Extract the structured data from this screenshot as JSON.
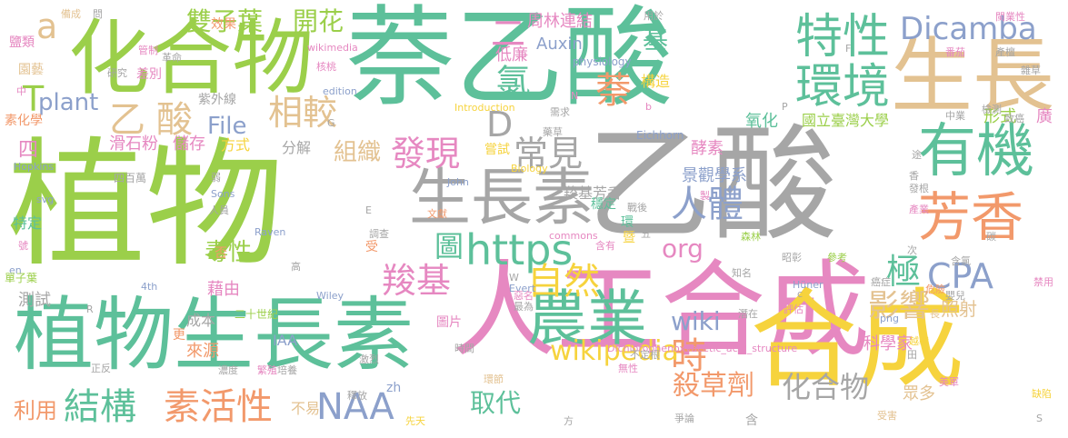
{
  "palette": {
    "green": "#9BCF4A",
    "teal": "#5DC09A",
    "gray": "#A6A6A6",
    "pink": "#E688C1",
    "yellow": "#F6D33D",
    "tan": "#E3C291",
    "orange": "#F2996B",
    "blue": "#8CA0CB"
  },
  "words": [
    {
      "text": "植物",
      "color": "green"
    },
    {
      "text": "乙酸",
      "color": "gray"
    },
    {
      "text": "萘乙酸",
      "color": "teal"
    },
    {
      "text": "人工合成",
      "color": "pink"
    },
    {
      "text": "合成",
      "color": "yellow"
    },
    {
      "text": "化合物",
      "color": "green"
    },
    {
      "text": "生長素",
      "color": "gray"
    },
    {
      "text": "植物生長素",
      "color": "teal"
    },
    {
      "text": "生長",
      "color": "tan"
    },
    {
      "text": "有機",
      "color": "teal"
    },
    {
      "text": "芳香",
      "color": "orange"
    },
    {
      "text": "農業",
      "color": "teal"
    },
    {
      "text": "特性",
      "color": "teal"
    },
    {
      "text": "環境",
      "color": "teal"
    },
    {
      "text": "Dicamba",
      "color": "blue"
    },
    {
      "text": "乙酸",
      "color": "tan"
    },
    {
      "text": "https",
      "color": "teal"
    },
    {
      "text": "結構",
      "color": "teal"
    },
    {
      "text": "素活性",
      "color": "orange"
    },
    {
      "text": "NAA",
      "color": "blue"
    },
    {
      "text": "自然",
      "color": "yellow"
    },
    {
      "text": "時",
      "color": "orange"
    },
    {
      "text": "人體",
      "color": "blue"
    },
    {
      "text": "常見",
      "color": "gray"
    },
    {
      "text": "發現",
      "color": "pink"
    },
    {
      "text": "羧基",
      "color": "pink"
    },
    {
      "text": "wikipedia",
      "color": "yellow"
    },
    {
      "text": "CPA",
      "color": "blue"
    },
    {
      "text": "極",
      "color": "teal"
    },
    {
      "text": "影響",
      "color": "tan"
    },
    {
      "text": "化合物",
      "color": "gray"
    },
    {
      "text": "殺草劑",
      "color": "orange"
    },
    {
      "text": "wiki",
      "color": "blue"
    },
    {
      "text": "org",
      "color": "pink"
    },
    {
      "text": "萘",
      "color": "orange"
    },
    {
      "text": "氯",
      "color": "teal"
    },
    {
      "text": "相較",
      "color": "tan"
    },
    {
      "text": "組織",
      "color": "tan"
    },
    {
      "text": "開花",
      "color": "green"
    },
    {
      "text": "雙子葉",
      "color": "green"
    },
    {
      "text": "毒性",
      "color": "green"
    },
    {
      "text": "File",
      "color": "blue"
    },
    {
      "text": "plant",
      "color": "blue"
    },
    {
      "text": "T",
      "color": "green"
    },
    {
      "text": "a",
      "color": "tan"
    },
    {
      "text": "D",
      "color": "gray"
    },
    {
      "text": "二",
      "color": "pink"
    },
    {
      "text": "基",
      "color": "teal"
    },
    {
      "text": "圖",
      "color": "teal"
    },
    {
      "text": "取代",
      "color": "teal"
    },
    {
      "text": "利用",
      "color": "orange"
    },
    {
      "text": "周林連結",
      "color": "pink"
    },
    {
      "text": "低廉",
      "color": "pink"
    },
    {
      "text": "氧化",
      "color": "teal"
    },
    {
      "text": "Auxin",
      "color": "blue"
    },
    {
      "text": "國立臺灣大學",
      "color": "green"
    },
    {
      "text": "景觀學系",
      "color": "blue"
    },
    {
      "text": "羧基芳香",
      "color": "gray"
    },
    {
      "text": "酵素",
      "color": "pink"
    },
    {
      "text": "科學家",
      "color": "pink"
    },
    {
      "text": "照射",
      "color": "tan"
    },
    {
      "text": "眾多",
      "color": "tan"
    },
    {
      "text": "形式",
      "color": "green"
    },
    {
      "text": "廣",
      "color": "pink"
    },
    {
      "text": "四",
      "color": "pink"
    },
    {
      "text": "滑石粉",
      "color": "pink"
    },
    {
      "text": "儲存",
      "color": "pink"
    },
    {
      "text": "方式",
      "color": "yellow"
    },
    {
      "text": "分解",
      "color": "gray"
    },
    {
      "text": "嘗試",
      "color": "yellow"
    },
    {
      "text": "穩定",
      "color": "teal"
    },
    {
      "text": "構造",
      "color": "yellow"
    },
    {
      "text": "成本",
      "color": "gray"
    },
    {
      "text": "來源",
      "color": "orange"
    },
    {
      "text": "藉由",
      "color": "pink"
    },
    {
      "text": "測試",
      "color": "gray"
    },
    {
      "text": "特定",
      "color": "teal"
    },
    {
      "text": "不易",
      "color": "tan"
    },
    {
      "text": "IAA",
      "color": "blue"
    },
    {
      "text": "二十世紀",
      "color": "green"
    },
    {
      "text": "圖片",
      "color": "pink"
    },
    {
      "text": "紫外線",
      "color": "gray"
    },
    {
      "text": "效果",
      "color": "orange"
    },
    {
      "text": "差別",
      "color": "pink"
    },
    {
      "text": "園藝",
      "color": "tan"
    },
    {
      "text": "鹽類",
      "color": "pink"
    },
    {
      "text": "素化學",
      "color": "orange"
    },
    {
      "text": "Hopkins",
      "color": "blue"
    },
    {
      "text": "physiology",
      "color": "blue"
    },
    {
      "text": "Introduction",
      "color": "yellow"
    },
    {
      "text": "Eichhorn",
      "color": "blue"
    },
    {
      "text": "Biology",
      "color": "yellow"
    },
    {
      "text": "John",
      "color": "blue"
    },
    {
      "text": "Sons",
      "color": "blue"
    },
    {
      "text": "Raven",
      "color": "blue"
    },
    {
      "text": "edition",
      "color": "blue"
    },
    {
      "text": "wikimedia",
      "color": "pink"
    },
    {
      "text": "commons",
      "color": "pink"
    },
    {
      "text": "Dichlorophenoxyacetic_acid_structure",
      "color": "pink"
    },
    {
      "text": "zh",
      "color": "blue"
    },
    {
      "text": "svg",
      "color": "blue"
    },
    {
      "text": "png",
      "color": "blue"
    },
    {
      "text": "4th",
      "color": "blue"
    },
    {
      "text": "Evert",
      "color": "blue"
    },
    {
      "text": "Wiley",
      "color": "blue"
    },
    {
      "text": "Hüner",
      "color": "blue"
    },
    {
      "text": "en",
      "color": "blue"
    },
    {
      "text": "單子葉",
      "color": "green"
    },
    {
      "text": "四百萬",
      "color": "gray"
    },
    {
      "text": "更",
      "color": "orange"
    },
    {
      "text": "否",
      "color": "orange"
    },
    {
      "text": "受",
      "color": "orange"
    },
    {
      "text": "先天",
      "color": "yellow"
    },
    {
      "text": "環節",
      "color": "tan"
    },
    {
      "text": "時間",
      "color": "gray"
    },
    {
      "text": "最為",
      "color": "gray"
    },
    {
      "text": "惡名",
      "color": "pink"
    },
    {
      "text": "知名",
      "color": "gray"
    },
    {
      "text": "森林",
      "color": "green"
    },
    {
      "text": "昭彰",
      "color": "gray"
    },
    {
      "text": "參考",
      "color": "green"
    },
    {
      "text": "癌症",
      "color": "gray"
    },
    {
      "text": "危險",
      "color": "orange"
    },
    {
      "text": "嬰兒",
      "color": "gray"
    },
    {
      "text": "評估",
      "color": "pink"
    },
    {
      "text": "潛在",
      "color": "gray"
    },
    {
      "text": "越戰",
      "color": "yellow"
    },
    {
      "text": "美軍",
      "color": "pink"
    },
    {
      "text": "受害",
      "color": "tan"
    },
    {
      "text": "爭論",
      "color": "gray"
    },
    {
      "text": "缺陷",
      "color": "yellow"
    },
    {
      "text": "禁用",
      "color": "pink"
    },
    {
      "text": "產業",
      "color": "pink"
    },
    {
      "text": "檢測",
      "color": "gray"
    },
    {
      "text": "致癌",
      "color": "gray"
    },
    {
      "text": "中業",
      "color": "gray"
    },
    {
      "text": "需求",
      "color": "gray"
    },
    {
      "text": "文獻",
      "color": "orange"
    },
    {
      "text": "調查",
      "color": "gray"
    },
    {
      "text": "戰後",
      "color": "gray"
    },
    {
      "text": "人員",
      "color": "gray"
    },
    {
      "text": "濃度",
      "color": "gray"
    },
    {
      "text": "培養",
      "color": "gray"
    },
    {
      "text": "繁殖",
      "color": "pink"
    },
    {
      "text": "激烈",
      "color": "gray"
    },
    {
      "text": "釋放",
      "color": "gray"
    },
    {
      "text": "正反",
      "color": "gray"
    },
    {
      "text": "研究",
      "color": "gray"
    },
    {
      "text": "革命",
      "color": "gray"
    },
    {
      "text": "管制",
      "color": "pink"
    },
    {
      "text": "備成",
      "color": "tan"
    },
    {
      "text": "核桃",
      "color": "pink"
    },
    {
      "text": "藥草",
      "color": "gray"
    },
    {
      "text": "閩業性",
      "color": "pink"
    },
    {
      "text": "番茄",
      "color": "pink"
    },
    {
      "text": "產檀",
      "color": "gray"
    },
    {
      "text": "雜草",
      "color": "gray"
    },
    {
      "text": "用於",
      "color": "gray"
    },
    {
      "text": "不定根",
      "color": "gray"
    },
    {
      "text": "無性",
      "color": "pink"
    },
    {
      "text": "含有",
      "color": "pink"
    },
    {
      "text": "含氯",
      "color": "gray"
    },
    {
      "text": "次",
      "color": "gray"
    },
    {
      "text": "號",
      "color": "pink"
    },
    {
      "text": "暨",
      "color": "yellow"
    },
    {
      "text": "環",
      "color": "teal"
    },
    {
      "text": "五",
      "color": "gray"
    },
    {
      "text": "含",
      "color": "gray"
    },
    {
      "text": "高",
      "color": "gray"
    },
    {
      "text": "方",
      "color": "gray"
    },
    {
      "text": "田",
      "color": "gray"
    },
    {
      "text": "長",
      "color": "tan"
    },
    {
      "text": "碳",
      "color": "gray"
    },
    {
      "text": "途",
      "color": "gray"
    },
    {
      "text": "製",
      "color": "pink"
    },
    {
      "text": "發根",
      "color": "gray"
    },
    {
      "text": "香",
      "color": "gray"
    },
    {
      "text": "中",
      "color": "pink"
    },
    {
      "text": "問",
      "color": "gray"
    },
    {
      "text": "弱",
      "color": "gray"
    },
    {
      "text": "N",
      "color": "pink"
    },
    {
      "text": "G",
      "color": "gray"
    },
    {
      "text": "F",
      "color": "gray"
    },
    {
      "text": "P",
      "color": "gray"
    },
    {
      "text": "R",
      "color": "gray"
    },
    {
      "text": "W",
      "color": "gray"
    },
    {
      "text": "E",
      "color": "gray"
    },
    {
      "text": "S",
      "color": "gray"
    },
    {
      "text": "b",
      "color": "pink"
    },
    {
      "text": "c",
      "color": "gray"
    }
  ]
}
